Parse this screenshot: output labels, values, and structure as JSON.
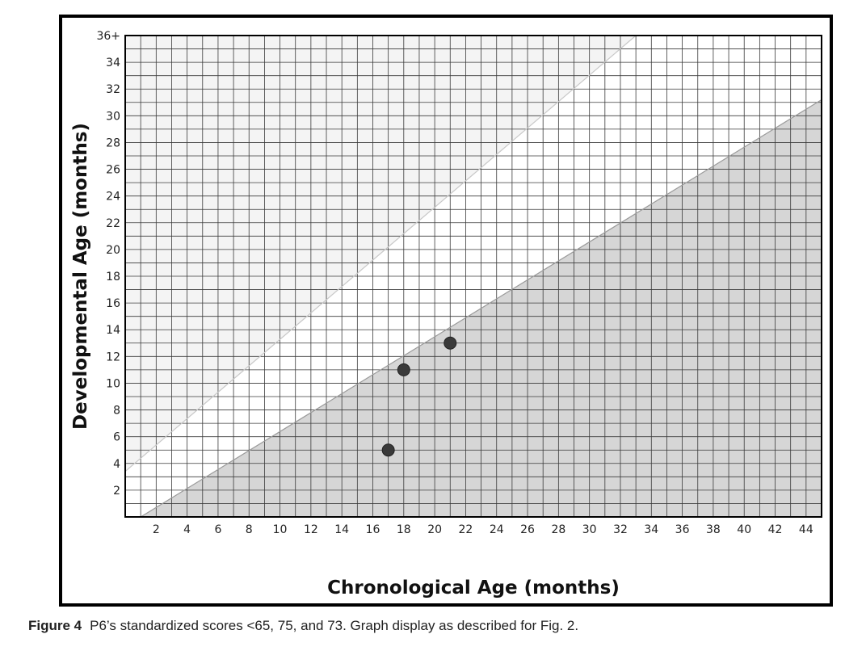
{
  "caption": {
    "label": "Figure 4",
    "text": "P6’s standardized scores <65, 75, and 73. Graph display as described for Fig. 2."
  },
  "colors": {
    "shaded_region": "#d6d6d6",
    "upper_band": "#f4f4f4",
    "grid": "#3a3a3a",
    "points": "#3a3a3a",
    "frame": "#000000"
  },
  "chart_data": {
    "type": "scatter",
    "xlabel": "Chronological Age (months)",
    "ylabel": "Developmental Age (months)",
    "xlim": [
      0,
      45
    ],
    "ylim": [
      0,
      36
    ],
    "x_ticks": [
      "2",
      "4",
      "6",
      "8",
      "10",
      "12",
      "14",
      "16",
      "18",
      "20",
      "22",
      "24",
      "26",
      "28",
      "30",
      "32",
      "34",
      "36",
      "38",
      "40",
      "42",
      "44"
    ],
    "y_ticks": [
      "2",
      "4",
      "6",
      "8",
      "10",
      "12",
      "14",
      "16",
      "18",
      "20",
      "22",
      "24",
      "26",
      "28",
      "30",
      "32",
      "34",
      "36+"
    ],
    "grid": true,
    "points": [
      {
        "x": 17,
        "y": 5
      },
      {
        "x": 18,
        "y": 11
      },
      {
        "x": 21,
        "y": 13
      }
    ],
    "reference_lines": [
      {
        "x1": 1,
        "y1": 0,
        "x2": 45,
        "y2": 31.2
      },
      {
        "x1": 0,
        "y1": 3.4,
        "x2": 33,
        "y2": 36
      }
    ]
  }
}
